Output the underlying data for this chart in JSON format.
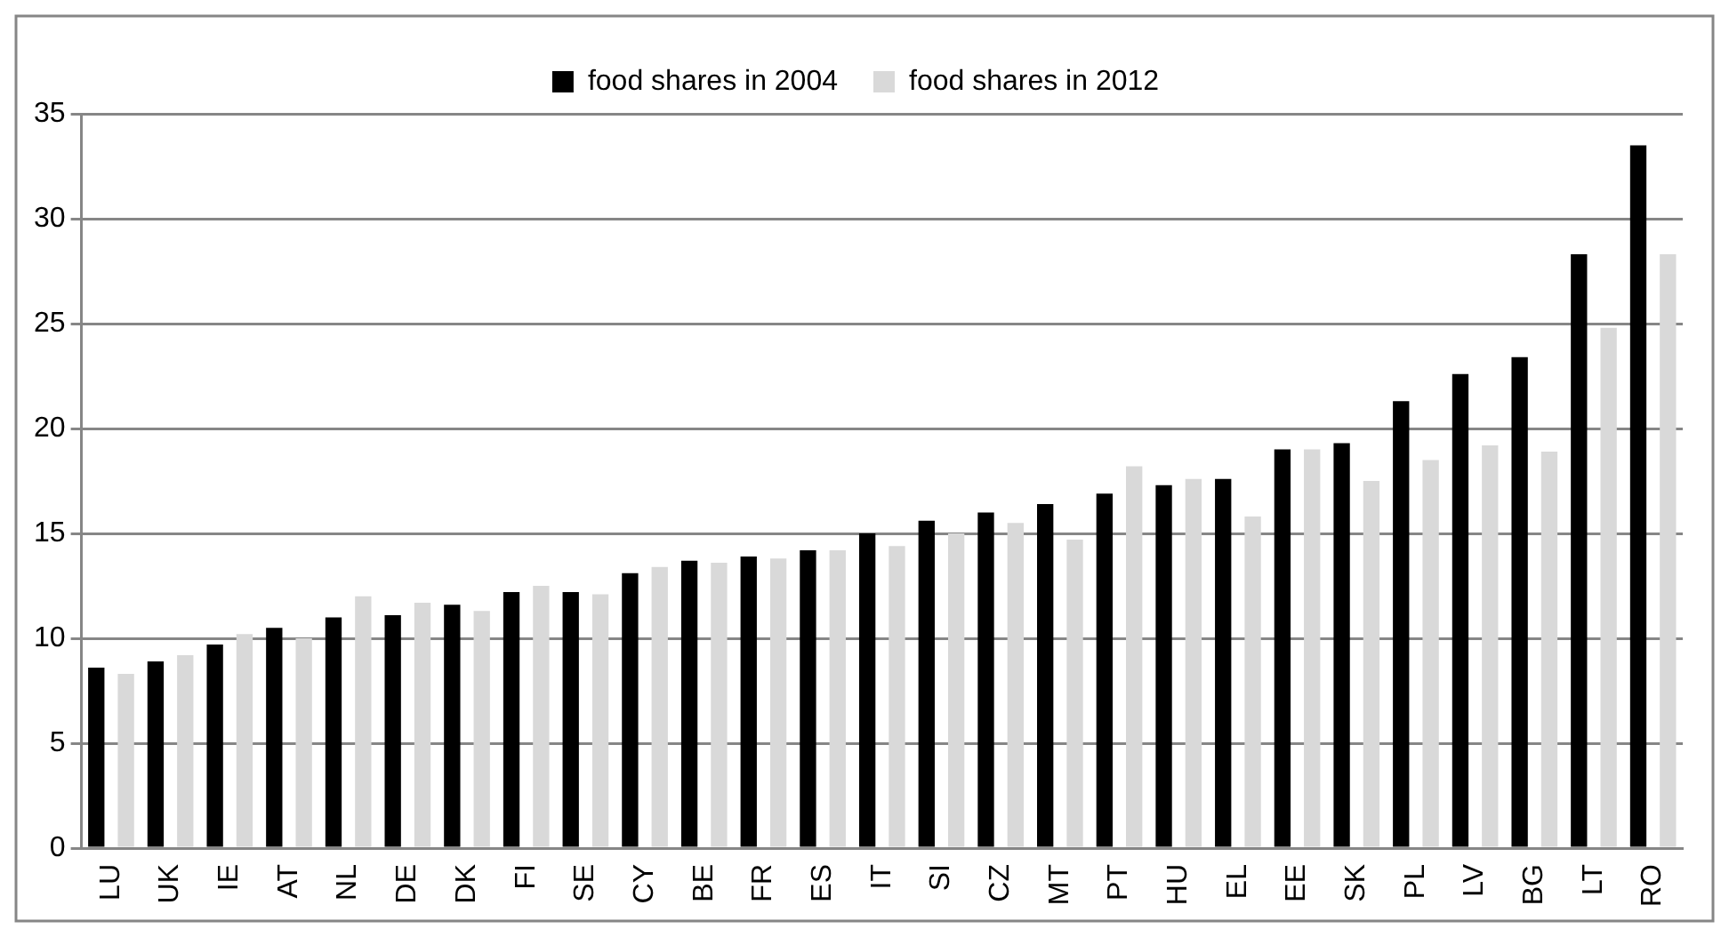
{
  "chart_data": {
    "type": "bar",
    "categories": [
      "LU",
      "UK",
      "IE",
      "AT",
      "NL",
      "DE",
      "DK",
      "FI",
      "SE",
      "CY",
      "BE",
      "FR",
      "ES",
      "IT",
      "SI",
      "CZ",
      "MT",
      "PT",
      "HU",
      "EL",
      "EE",
      "SK",
      "PL",
      "LV",
      "BG",
      "LT",
      "RO"
    ],
    "series": [
      {
        "name": "food shares in 2004",
        "color": "#000000",
        "values": [
          8.6,
          8.9,
          9.7,
          10.5,
          11.0,
          11.1,
          11.6,
          12.2,
          12.2,
          13.1,
          13.7,
          13.9,
          14.2,
          15.0,
          15.6,
          16.0,
          16.4,
          16.9,
          17.3,
          17.6,
          19.0,
          19.3,
          21.3,
          22.6,
          23.4,
          28.3,
          33.5
        ]
      },
      {
        "name": "food shares in 2012",
        "color": "#d9d9d9",
        "values": [
          8.3,
          9.2,
          10.2,
          10.0,
          12.0,
          11.7,
          11.3,
          12.5,
          12.1,
          13.4,
          13.6,
          13.8,
          14.2,
          14.4,
          15.0,
          15.5,
          14.7,
          18.2,
          17.6,
          15.8,
          19.0,
          17.5,
          18.5,
          19.2,
          18.9,
          24.8,
          28.3
        ]
      }
    ],
    "ylim": [
      0,
      35
    ],
    "yticks": [
      0,
      5,
      10,
      15,
      20,
      25,
      30,
      35
    ],
    "grid": "y",
    "legend": "top"
  }
}
